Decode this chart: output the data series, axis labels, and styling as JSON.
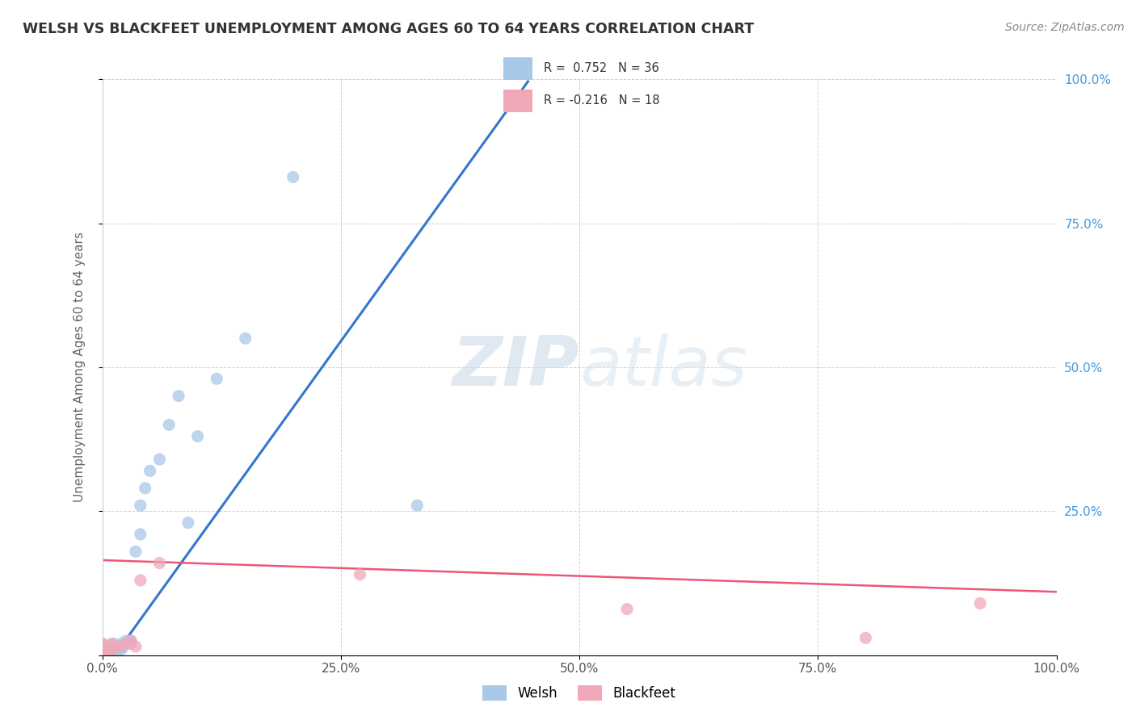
{
  "title": "WELSH VS BLACKFEET UNEMPLOYMENT AMONG AGES 60 TO 64 YEARS CORRELATION CHART",
  "source": "Source: ZipAtlas.com",
  "ylabel": "Unemployment Among Ages 60 to 64 years",
  "xlim": [
    0,
    1.0
  ],
  "ylim": [
    0,
    1.0
  ],
  "xtick_labels": [
    "0.0%",
    "25.0%",
    "50.0%",
    "75.0%",
    "100.0%"
  ],
  "xtick_vals": [
    0.0,
    0.25,
    0.5,
    0.75,
    1.0
  ],
  "ytick_right_labels": [
    "100.0%",
    "75.0%",
    "50.0%",
    "25.0%",
    ""
  ],
  "ytick_vals": [
    1.0,
    0.75,
    0.5,
    0.25,
    0.0
  ],
  "welsh_R": 0.752,
  "welsh_N": 36,
  "blackfeet_R": -0.216,
  "blackfeet_N": 18,
  "welsh_color": "#a8c8e8",
  "blackfeet_color": "#f0a8b8",
  "welsh_line_color": "#3377cc",
  "blackfeet_line_color": "#ee5577",
  "watermark_zip": "ZIP",
  "watermark_atlas": "atlas",
  "welsh_line_slope": 2.3,
  "welsh_line_intercept": -0.03,
  "welsh_line_x_end": 0.46,
  "blackfeet_line_slope": -0.055,
  "blackfeet_line_intercept": 0.165,
  "welsh_x": [
    0.0,
    0.0,
    0.0,
    0.0,
    0.005,
    0.005,
    0.007,
    0.007,
    0.01,
    0.01,
    0.01,
    0.012,
    0.012,
    0.015,
    0.015,
    0.02,
    0.02,
    0.022,
    0.025,
    0.025,
    0.03,
    0.03,
    0.035,
    0.04,
    0.04,
    0.045,
    0.05,
    0.06,
    0.07,
    0.08,
    0.09,
    0.1,
    0.12,
    0.15,
    0.2,
    0.33
  ],
  "welsh_y": [
    0.0,
    0.005,
    0.01,
    0.02,
    0.0,
    0.005,
    0.0,
    0.01,
    0.0,
    0.005,
    0.015,
    0.01,
    0.02,
    0.005,
    0.015,
    0.01,
    0.02,
    0.015,
    0.02,
    0.025,
    0.02,
    0.025,
    0.18,
    0.21,
    0.26,
    0.29,
    0.32,
    0.34,
    0.4,
    0.45,
    0.23,
    0.38,
    0.48,
    0.55,
    0.83,
    0.26
  ],
  "blackfeet_x": [
    0.0,
    0.0,
    0.0,
    0.005,
    0.005,
    0.01,
    0.01,
    0.015,
    0.02,
    0.025,
    0.03,
    0.035,
    0.04,
    0.06,
    0.27,
    0.55,
    0.8,
    0.92
  ],
  "blackfeet_y": [
    0.005,
    0.01,
    0.02,
    0.005,
    0.01,
    0.01,
    0.02,
    0.015,
    0.015,
    0.02,
    0.025,
    0.015,
    0.13,
    0.16,
    0.14,
    0.08,
    0.03,
    0.09
  ]
}
